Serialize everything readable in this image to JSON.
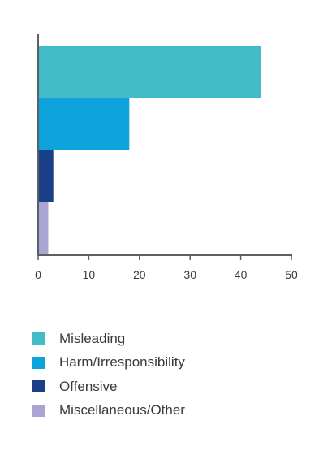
{
  "chart_data": {
    "type": "bar",
    "orientation": "horizontal",
    "title": "",
    "xlabel": "",
    "ylabel": "",
    "xlim": [
      0,
      50
    ],
    "x_ticks": [
      0,
      10,
      20,
      30,
      40,
      50
    ],
    "grid": false,
    "legend_position": "bottom-left",
    "categories": [
      "Misleading",
      "Harm/Irresponsibility",
      "Offensive",
      "Miscellaneous/Other"
    ],
    "values": [
      44,
      18,
      3,
      2
    ],
    "colors": [
      "#44bcc7",
      "#0fa3dd",
      "#1a3f87",
      "#a9a4d1"
    ]
  }
}
